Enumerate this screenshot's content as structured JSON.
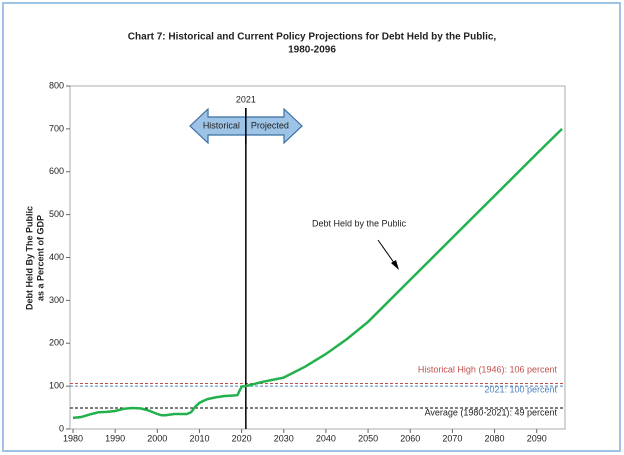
{
  "chart_data": {
    "type": "line",
    "title": [
      "Chart 7:  Historical and Current Policy Projections for Debt Held by the Public,",
      "1980-2096"
    ],
    "y_label": [
      "Debt Held By The Public",
      "as a Percent of GDP"
    ],
    "x": [
      1980,
      1982,
      1984,
      1986,
      1988,
      1990,
      1992,
      1994,
      1996,
      1998,
      2000,
      2001,
      2002,
      2004,
      2006,
      2007,
      2008,
      2009,
      2010,
      2011,
      2012,
      2014,
      2016,
      2018,
      2019,
      2020,
      2021,
      2025,
      2030,
      2035,
      2040,
      2045,
      2050,
      2060,
      2070,
      2080,
      2090,
      2096
    ],
    "series": [
      {
        "name": "Debt Held by the Public",
        "color": "#22b14c",
        "values": [
          26,
          28,
          34,
          39,
          40,
          42,
          47,
          49,
          48,
          43,
          35,
          32,
          32,
          35,
          35,
          35,
          39,
          52,
          61,
          66,
          70,
          74,
          77,
          78,
          79,
          99,
          100,
          110,
          120,
          145,
          175,
          210,
          250,
          348,
          446,
          544,
          642,
          700
        ]
      }
    ],
    "xlim": [
      1980,
      2096
    ],
    "ylim": [
      0,
      800
    ],
    "xticks": [
      1980,
      1990,
      2000,
      2010,
      2020,
      2030,
      2040,
      2050,
      2060,
      2070,
      2080,
      2090
    ],
    "yticks": [
      0,
      100,
      200,
      300,
      400,
      500,
      600,
      700,
      800
    ],
    "reference_lines": [
      {
        "value": 106,
        "label": "Historical High (1946): 106 percent",
        "color": "#c0504d"
      },
      {
        "value": 100,
        "label": "2021: 100 percent",
        "color": "#4f81bd"
      },
      {
        "value": 49,
        "label": "Average (1980-2021): 49 percent",
        "color": "#000000"
      }
    ],
    "marker": {
      "x": 2021
    },
    "arrow_labels": [
      "Historical",
      "Projected"
    ]
  }
}
